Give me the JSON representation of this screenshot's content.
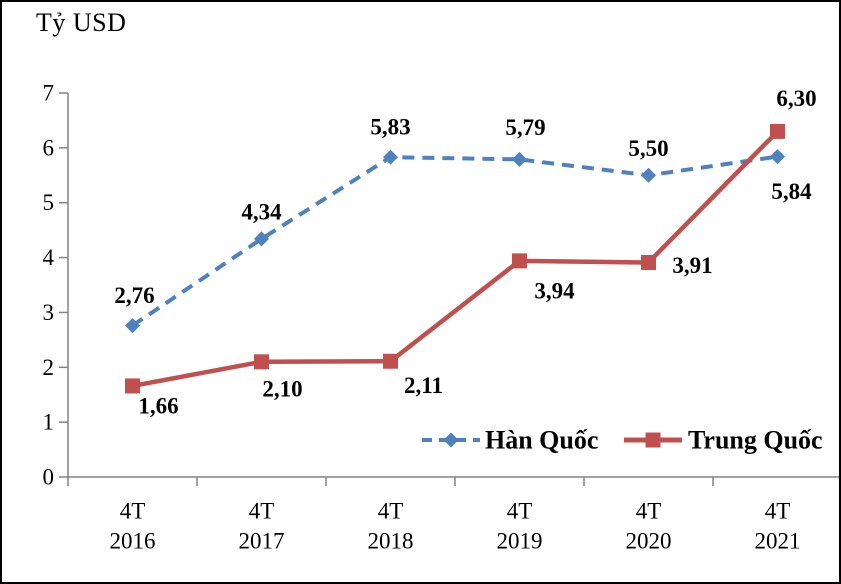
{
  "title": "Tỷ USD",
  "chart_data": {
    "type": "line",
    "title": "",
    "ylabel": "Tỷ USD",
    "xlabel": "",
    "ylim": [
      0,
      7
    ],
    "yticks": [
      0,
      1,
      2,
      3,
      4,
      5,
      6,
      7
    ],
    "grid": false,
    "legend_position": "inside-bottom-right",
    "categories": [
      "4T 2016",
      "4T 2017",
      "4T 2018",
      "4T 2019",
      "4T 2020",
      "4T 2021"
    ],
    "x_tick_lines": [
      [
        "4T",
        "2016"
      ],
      [
        "4T",
        "2017"
      ],
      [
        "4T",
        "2018"
      ],
      [
        "4T",
        "2019"
      ],
      [
        "4T",
        "2020"
      ],
      [
        "4T",
        "2021"
      ]
    ],
    "series": [
      {
        "name": "Hàn Quốc",
        "color": "#4F81BD",
        "line_style": "dashed",
        "marker": "diamond",
        "values": [
          2.76,
          4.34,
          5.83,
          5.79,
          5.5,
          5.84
        ],
        "labels": [
          "2,76",
          "4,34",
          "5,83",
          "5,79",
          "5,50",
          "5,84"
        ],
        "label_offsets": [
          [
            2,
            -30
          ],
          [
            0,
            -27
          ],
          [
            0,
            -30
          ],
          [
            6,
            -32
          ],
          [
            0,
            -27
          ],
          [
            14,
            35
          ]
        ]
      },
      {
        "name": "Trung Quốc",
        "color": "#C0504D",
        "line_style": "solid",
        "marker": "square",
        "values": [
          1.66,
          2.1,
          2.11,
          3.94,
          3.91,
          6.3
        ],
        "labels": [
          "1,66",
          "2,10",
          "2,11",
          "3,94",
          "3,91",
          "6,30"
        ],
        "label_offsets": [
          [
            26,
            20
          ],
          [
            21,
            27
          ],
          [
            33,
            24
          ],
          [
            35,
            30
          ],
          [
            44,
            3
          ],
          [
            19,
            -33
          ]
        ]
      }
    ],
    "axis_color": "#838383",
    "text_color": "#000000"
  }
}
